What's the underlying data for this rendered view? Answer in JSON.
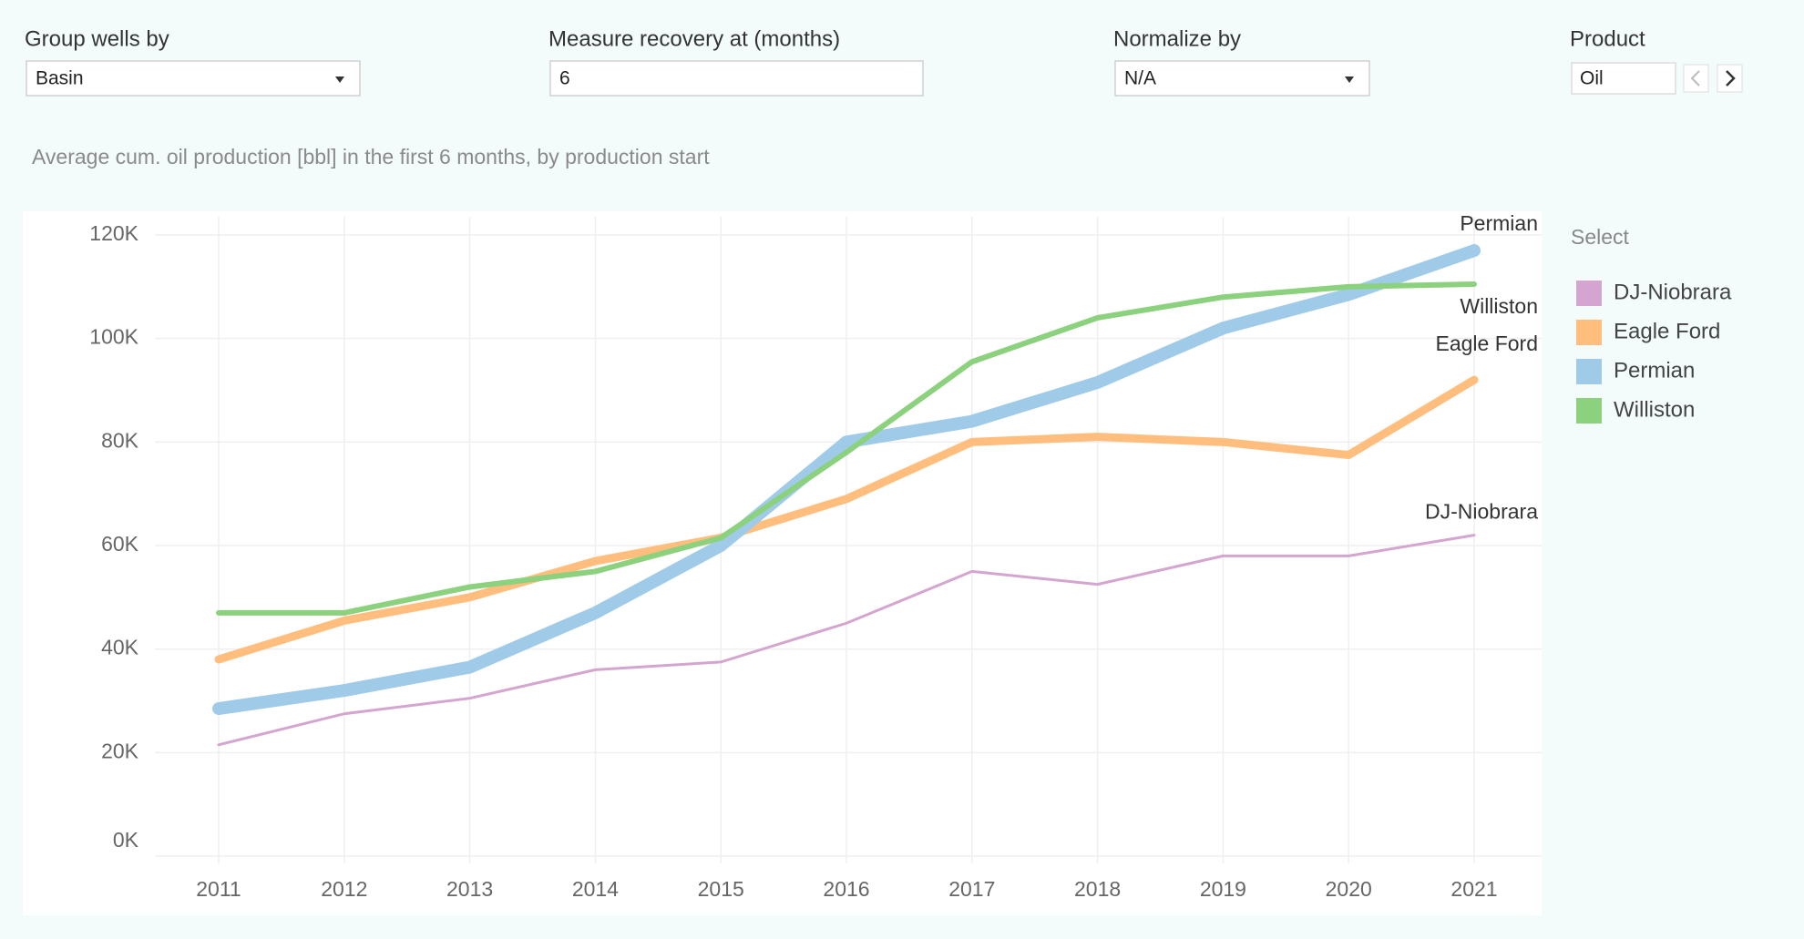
{
  "controls": [
    {
      "label": "Group wells by",
      "value": "Basin"
    },
    {
      "label": "Measure recovery at (months)",
      "value": "6"
    },
    {
      "label": "Normalize by",
      "value": "N/A"
    },
    {
      "label": "Product",
      "value": "Oil"
    }
  ],
  "chart_data": {
    "type": "line",
    "subtitle": "Average cum. oil production [bbl] in the first 6 months, by production start",
    "categories": [
      "2011",
      "2012",
      "2013",
      "2014",
      "2015",
      "2016",
      "2017",
      "2018",
      "2019",
      "2020",
      "2021"
    ],
    "series": [
      {
        "name": "DJ-Niobrara",
        "color": "#d4a6cf",
        "values": [
          21500,
          27500,
          30500,
          36000,
          37500,
          45000,
          55000,
          52500,
          58000,
          58000,
          62000
        ]
      },
      {
        "name": "Eagle Ford",
        "color": "#ffbe7d",
        "values": [
          38000,
          45500,
          50000,
          57000,
          61500,
          69000,
          80000,
          81000,
          80000,
          77500,
          92000
        ]
      },
      {
        "name": "Permian",
        "color": "#a0cbe8",
        "values": [
          28500,
          32000,
          36500,
          47000,
          60000,
          80000,
          84000,
          91500,
          102000,
          108500,
          117000
        ]
      },
      {
        "name": "Williston",
        "color": "#8cd17d",
        "values": [
          47000,
          47000,
          52000,
          55000,
          61500,
          78000,
          95500,
          104000,
          108000,
          110000,
          110500
        ]
      }
    ],
    "ylim": [
      0,
      120000
    ],
    "yticks": [
      {
        "value": 0,
        "label": "0K"
      },
      {
        "value": 20000,
        "label": "20K"
      },
      {
        "value": 40000,
        "label": "40K"
      },
      {
        "value": 60000,
        "label": "60K"
      },
      {
        "value": 80000,
        "label": "80K"
      },
      {
        "value": 100000,
        "label": "100K"
      },
      {
        "value": 120000,
        "label": "120K"
      }
    ],
    "grid": true,
    "legend_title": "Select",
    "legend": "right"
  }
}
